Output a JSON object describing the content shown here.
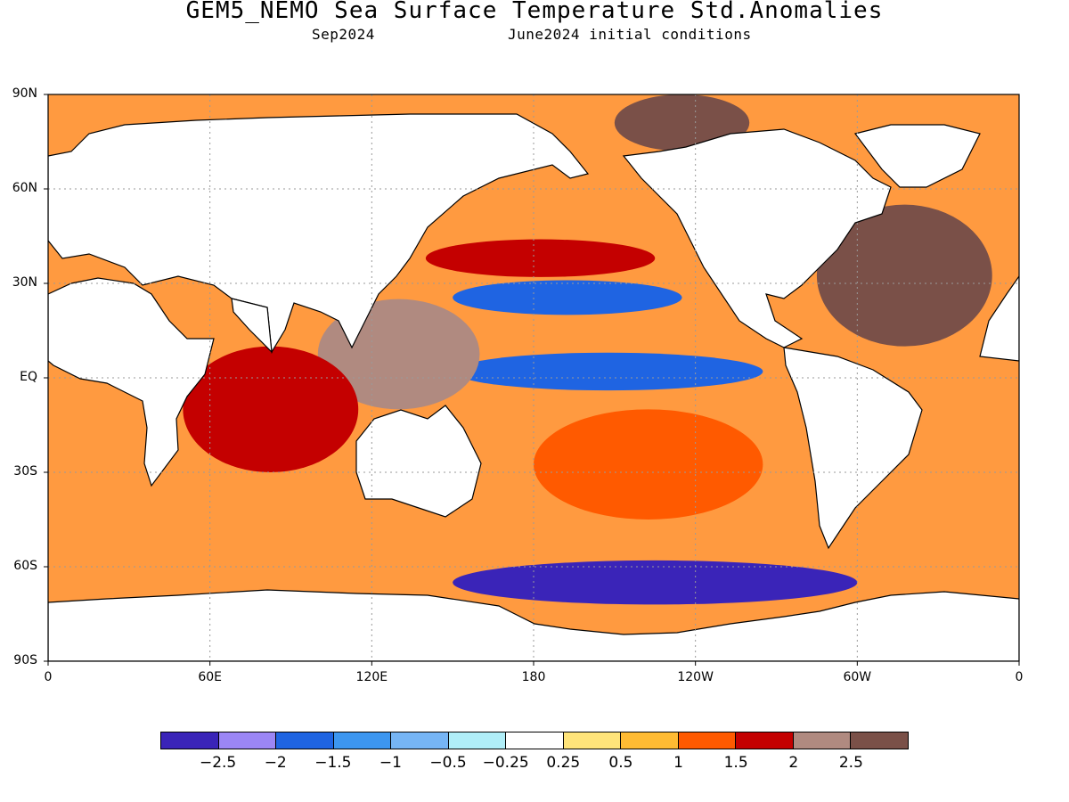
{
  "header": {
    "title": "GEM5_NEMO Sea Surface Temperature Std.Anomalies",
    "subtitle_left": "Sep2024",
    "subtitle_right": "June2024 initial conditions"
  },
  "map": {
    "projection": "equirectangular",
    "lon_range": [
      0,
      360
    ],
    "lat_range": [
      -90,
      90
    ],
    "grid": true,
    "lat_labels": [
      "90N",
      "60N",
      "30N",
      "EQ",
      "30S",
      "60S",
      "90S"
    ],
    "lon_labels": [
      "0",
      "60E",
      "120E",
      "180",
      "120W",
      "60W",
      "0"
    ],
    "land_color": "#ffffff",
    "ocean_patches": [
      {
        "name": "north-pacific-warm-band",
        "lon": [
          140,
          225
        ],
        "lat": [
          32,
          44
        ],
        "category": 11
      },
      {
        "name": "north-pacific-cool-band",
        "lon": [
          150,
          235
        ],
        "lat": [
          20,
          31
        ],
        "category": 3
      },
      {
        "name": "equatorial-pacific-cool-tongue",
        "lon": [
          150,
          265
        ],
        "lat": [
          -4,
          8
        ],
        "category": 3
      },
      {
        "name": "south-pacific-warm",
        "lon": [
          180,
          265
        ],
        "lat": [
          -45,
          -10
        ],
        "category": 10
      },
      {
        "name": "maritime-continent-warm",
        "lon": [
          100,
          160
        ],
        "lat": [
          -10,
          25
        ],
        "category": 12
      },
      {
        "name": "indian-ocean-warm",
        "lon": [
          50,
          115
        ],
        "lat": [
          -30,
          10
        ],
        "category": 11
      },
      {
        "name": "north-atlantic-warm",
        "lon": [
          285,
          350
        ],
        "lat": [
          10,
          55
        ],
        "category": 13
      },
      {
        "name": "southern-ocean-cool",
        "lon": [
          150,
          300
        ],
        "lat": [
          -72,
          -58
        ],
        "category": 1
      },
      {
        "name": "arctic-warm",
        "lon": [
          210,
          260
        ],
        "lat": [
          72,
          90
        ],
        "category": 13
      }
    ]
  },
  "colorbar": {
    "colors": [
      "#3a24b8",
      "#9b86f5",
      "#1f64e2",
      "#3c96f0",
      "#76b5f5",
      "#b0eef8",
      "#ffffff",
      "#ffe47a",
      "#ffbb33",
      "#ff5a00",
      "#c40000",
      "#b08a80",
      "#7a5048"
    ],
    "labels": [
      "−2.5",
      "−2",
      "−1.5",
      "−1",
      "−0.5",
      "−0.25",
      "0.25",
      "0.5",
      "1",
      "1.5",
      "2",
      "2.5"
    ]
  }
}
